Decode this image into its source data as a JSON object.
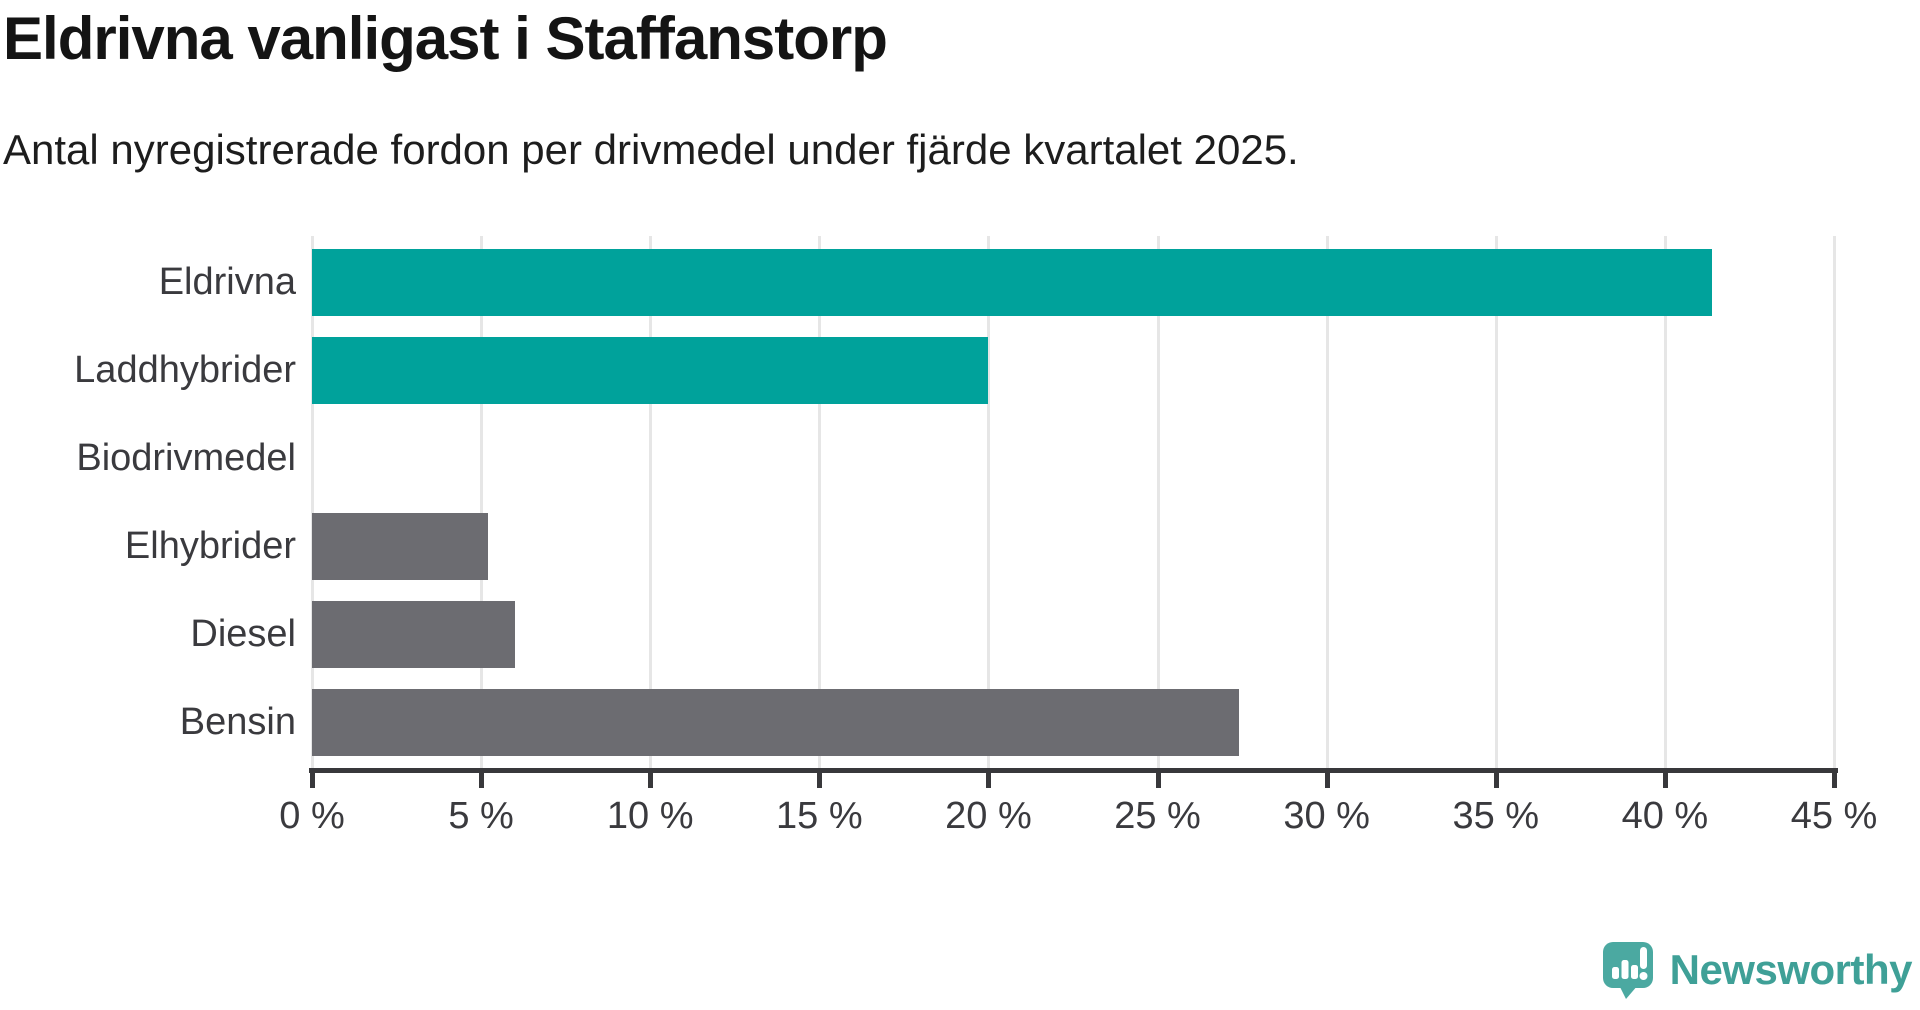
{
  "title": "Eldrivna vanligast i Staffanstorp",
  "subtitle": "Antal nyregistrerade fordon per drivmedel under fjärde kvartalet 2025.",
  "chart_data": {
    "type": "bar",
    "orientation": "horizontal",
    "title": "Eldrivna vanligast i Staffanstorp",
    "subtitle": "Antal nyregistrerade fordon per drivmedel under fjärde kvartalet 2025.",
    "categories": [
      "Eldrivna",
      "Laddhybrider",
      "Biodrivmedel",
      "Elhybrider",
      "Diesel",
      "Bensin"
    ],
    "values": [
      41.4,
      20.0,
      0,
      5.2,
      6.0,
      27.4
    ],
    "unit": "%",
    "bar_colors": [
      "#00a29b",
      "#00a29b",
      "#00a29b",
      "#6c6c71",
      "#6c6c71",
      "#6c6c71"
    ],
    "xlabel": "",
    "ylabel": "",
    "xlim": [
      0,
      45
    ],
    "x_tick_values": [
      0,
      5,
      10,
      15,
      20,
      25,
      30,
      35,
      40,
      45
    ],
    "x_tick_labels": [
      "0 %",
      "5 %",
      "10 %",
      "15 %",
      "20 %",
      "25 %",
      "30 %",
      "35 %",
      "40 %",
      "45 %"
    ],
    "grid": true,
    "legend_position": "none"
  },
  "colors": {
    "accent_teal": "#00a29b",
    "neutral_gray": "#6c6c71",
    "axis": "#38383b",
    "gridline": "#e6e6e6",
    "label_text": "#3a3a3e",
    "title_text": "#141414",
    "logo_teal": "#4ba9a1",
    "logo_text_teal": "#3fa097"
  },
  "branding": {
    "logo_text": "Newsworthy"
  }
}
